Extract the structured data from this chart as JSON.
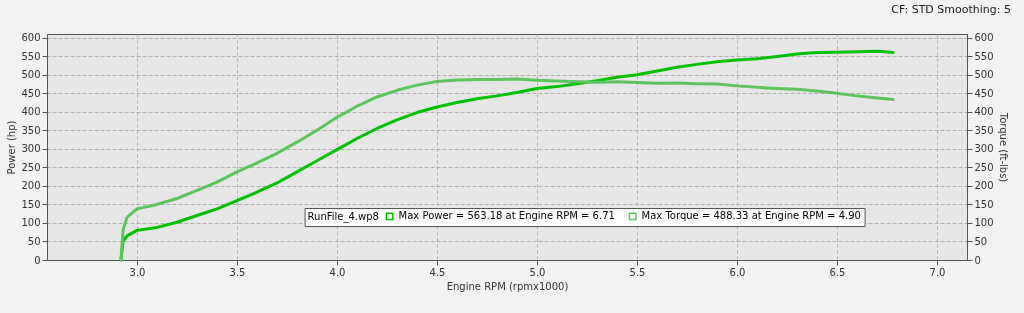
{
  "chart_data": {
    "type": "line",
    "xlabel": "Engine RPM (rpmx1000)",
    "ylabel": "Power (hp)",
    "y2label": "Torque (ft-lbs)",
    "legend_title": "RunFile_4.wp8",
    "annotations": [
      "CF: STD Smoothing: 5"
    ],
    "xlim": [
      2.55,
      7.15
    ],
    "xticks": [
      {
        "value": 3,
        "label": "3.0"
      },
      {
        "value": 3.5,
        "label": "3.5"
      },
      {
        "value": 4,
        "label": "4.0"
      },
      {
        "value": 4.5,
        "label": "4.5"
      },
      {
        "value": 5,
        "label": "5.0"
      },
      {
        "value": 5.5,
        "label": "5.5"
      },
      {
        "value": 6,
        "label": "6.0"
      },
      {
        "value": 6.5,
        "label": "6.5"
      },
      {
        "value": 7,
        "label": "7.0"
      }
    ],
    "ylim": [
      0,
      610
    ],
    "yticks": [
      0,
      50,
      100,
      150,
      200,
      250,
      300,
      350,
      400,
      450,
      500,
      550,
      600
    ],
    "y2lim": [
      0,
      610
    ],
    "y2ticks": [
      0,
      50,
      100,
      150,
      200,
      250,
      300,
      350,
      400,
      450,
      500,
      550,
      600
    ],
    "grid": true,
    "legend": "bottom",
    "marker": "none",
    "line_style": "solid",
    "series": [
      {
        "name": "Max Power = 563.18 at Engine RPM = 6.71",
        "color": "#00c000",
        "x": [
          2.92,
          2.93,
          2.95,
          3.0,
          3.1,
          3.2,
          3.3,
          3.4,
          3.5,
          3.6,
          3.7,
          3.8,
          3.9,
          4.0,
          4.1,
          4.2,
          4.3,
          4.4,
          4.5,
          4.6,
          4.7,
          4.8,
          4.9,
          5.0,
          5.1,
          5.2,
          5.3,
          5.4,
          5.5,
          5.6,
          5.7,
          5.8,
          5.9,
          6.0,
          6.1,
          6.2,
          6.3,
          6.4,
          6.5,
          6.6,
          6.71,
          6.78
        ],
        "values": [
          0,
          50,
          65,
          80,
          88,
          102,
          120,
          138,
          160,
          183,
          208,
          238,
          268,
          298,
          328,
          355,
          378,
          398,
          413,
          425,
          435,
          443,
          452,
          463,
          468,
          476,
          484,
          493,
          500,
          510,
          520,
          528,
          535,
          540,
          543,
          549,
          556,
          560,
          561,
          562,
          563.18,
          560
        ]
      },
      {
        "name": "Max Torque = 488.33 at Engine RPM = 4.90",
        "color": "#5cc45c",
        "axis": "y2",
        "x": [
          2.92,
          2.93,
          2.95,
          3.0,
          3.1,
          3.2,
          3.3,
          3.4,
          3.5,
          3.6,
          3.7,
          3.8,
          3.9,
          4.0,
          4.1,
          4.2,
          4.3,
          4.4,
          4.5,
          4.6,
          4.7,
          4.8,
          4.9,
          5.0,
          5.1,
          5.2,
          5.3,
          5.4,
          5.5,
          5.6,
          5.7,
          5.8,
          5.9,
          6.0,
          6.1,
          6.2,
          6.3,
          6.4,
          6.5,
          6.6,
          6.7,
          6.78
        ],
        "values": [
          0,
          80,
          115,
          138,
          150,
          166,
          188,
          210,
          238,
          262,
          288,
          318,
          350,
          385,
          415,
          440,
          458,
          472,
          482,
          486,
          487,
          487,
          488.33,
          485,
          483,
          481,
          480,
          481,
          479,
          477,
          478,
          476,
          475,
          470,
          466,
          463,
          461,
          456,
          450,
          443,
          437,
          433
        ]
      }
    ]
  }
}
